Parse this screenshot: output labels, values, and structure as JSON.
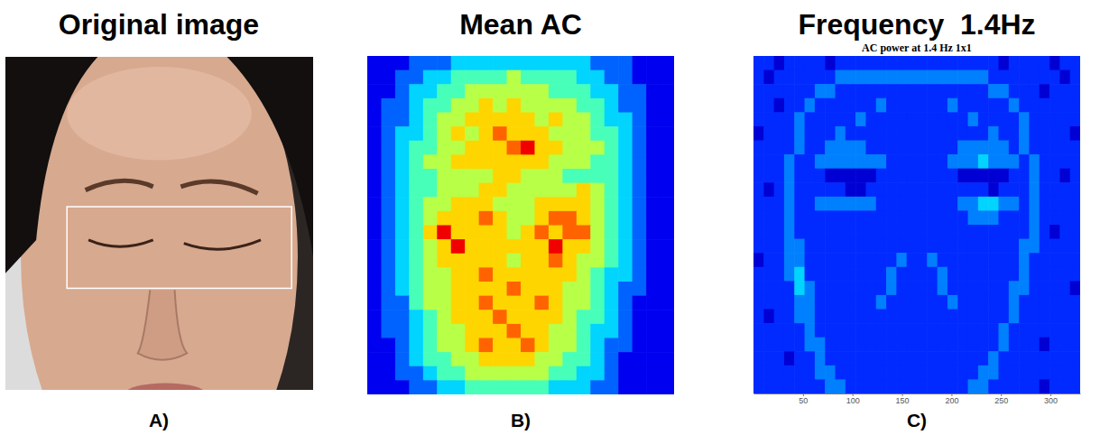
{
  "chart_data": [
    {
      "type": "image",
      "title": "Original image",
      "label": "A)"
    },
    {
      "type": "heatmap",
      "title": "Mean AC",
      "label": "B)",
      "tick_labels": false,
      "zlim": [
        0,
        9
      ],
      "cells": [
        [
          1,
          1,
          1,
          2,
          2,
          2,
          3,
          3,
          3,
          3,
          3,
          3,
          3,
          3,
          3,
          3,
          2,
          2,
          2,
          1,
          1,
          1
        ],
        [
          1,
          1,
          2,
          2,
          3,
          3,
          4,
          4,
          4,
          4,
          5,
          4,
          4,
          4,
          4,
          3,
          3,
          2,
          2,
          1,
          1,
          1
        ],
        [
          1,
          1,
          2,
          3,
          3,
          4,
          4,
          5,
          5,
          5,
          5,
          5,
          5,
          4,
          4,
          4,
          3,
          3,
          2,
          2,
          1,
          1
        ],
        [
          1,
          2,
          2,
          3,
          4,
          4,
          5,
          5,
          6,
          5,
          6,
          5,
          5,
          5,
          5,
          4,
          4,
          3,
          2,
          2,
          1,
          1
        ],
        [
          1,
          2,
          2,
          3,
          4,
          5,
          5,
          6,
          6,
          6,
          6,
          6,
          5,
          6,
          5,
          5,
          4,
          3,
          3,
          2,
          1,
          1
        ],
        [
          1,
          2,
          3,
          3,
          4,
          5,
          6,
          5,
          6,
          7,
          6,
          6,
          6,
          5,
          5,
          5,
          4,
          4,
          3,
          2,
          1,
          1
        ],
        [
          1,
          2,
          3,
          4,
          4,
          5,
          5,
          6,
          6,
          6,
          7,
          8,
          6,
          6,
          5,
          5,
          5,
          4,
          3,
          2,
          1,
          1
        ],
        [
          1,
          2,
          3,
          4,
          5,
          5,
          6,
          6,
          6,
          6,
          6,
          6,
          6,
          5,
          5,
          5,
          4,
          4,
          3,
          2,
          1,
          1
        ],
        [
          1,
          2,
          3,
          4,
          4,
          5,
          5,
          5,
          5,
          6,
          6,
          5,
          5,
          5,
          4,
          4,
          4,
          4,
          3,
          2,
          1,
          1
        ],
        [
          1,
          2,
          3,
          4,
          4,
          5,
          5,
          5,
          6,
          6,
          5,
          5,
          5,
          5,
          5,
          6,
          5,
          4,
          3,
          2,
          1,
          1
        ],
        [
          1,
          2,
          3,
          4,
          5,
          5,
          6,
          6,
          6,
          5,
          5,
          5,
          6,
          6,
          6,
          6,
          5,
          4,
          3,
          2,
          1,
          1
        ],
        [
          1,
          2,
          3,
          4,
          5,
          6,
          6,
          6,
          7,
          6,
          5,
          5,
          6,
          7,
          7,
          6,
          5,
          4,
          3,
          2,
          1,
          1
        ],
        [
          1,
          2,
          3,
          4,
          6,
          8,
          6,
          6,
          6,
          6,
          5,
          6,
          7,
          6,
          7,
          7,
          5,
          4,
          3,
          2,
          1,
          1
        ],
        [
          1,
          2,
          3,
          4,
          5,
          6,
          8,
          6,
          6,
          6,
          6,
          6,
          6,
          8,
          6,
          6,
          5,
          4,
          3,
          2,
          1,
          1
        ],
        [
          1,
          2,
          3,
          4,
          5,
          6,
          6,
          6,
          6,
          6,
          5,
          6,
          6,
          7,
          6,
          5,
          5,
          4,
          3,
          2,
          1,
          1
        ],
        [
          1,
          2,
          3,
          4,
          5,
          5,
          6,
          6,
          7,
          6,
          6,
          6,
          6,
          6,
          6,
          5,
          4,
          3,
          3,
          2,
          1,
          1
        ],
        [
          1,
          2,
          3,
          4,
          5,
          5,
          6,
          6,
          6,
          6,
          7,
          6,
          6,
          6,
          5,
          5,
          4,
          3,
          2,
          2,
          1,
          1
        ],
        [
          1,
          2,
          2,
          4,
          5,
          5,
          6,
          6,
          7,
          6,
          6,
          6,
          7,
          6,
          5,
          5,
          4,
          3,
          2,
          1,
          1,
          1
        ],
        [
          1,
          2,
          2,
          3,
          4,
          5,
          6,
          6,
          6,
          7,
          6,
          6,
          6,
          6,
          5,
          4,
          4,
          3,
          2,
          1,
          1,
          1
        ],
        [
          1,
          2,
          2,
          3,
          4,
          5,
          5,
          6,
          6,
          6,
          7,
          6,
          6,
          5,
          5,
          4,
          3,
          3,
          2,
          1,
          1,
          1
        ],
        [
          1,
          1,
          2,
          3,
          4,
          5,
          5,
          6,
          7,
          6,
          6,
          7,
          6,
          5,
          5,
          4,
          3,
          2,
          2,
          1,
          1,
          1
        ],
        [
          1,
          1,
          2,
          3,
          4,
          4,
          5,
          5,
          6,
          6,
          6,
          6,
          5,
          5,
          4,
          4,
          3,
          2,
          1,
          1,
          1,
          1
        ],
        [
          1,
          1,
          2,
          2,
          3,
          4,
          4,
          5,
          5,
          5,
          5,
          5,
          5,
          4,
          4,
          3,
          3,
          2,
          1,
          1,
          1,
          1
        ],
        [
          1,
          1,
          1,
          2,
          2,
          3,
          3,
          4,
          4,
          4,
          4,
          4,
          4,
          3,
          3,
          3,
          2,
          2,
          1,
          1,
          1,
          1
        ]
      ]
    },
    {
      "type": "heatmap",
      "title": "Frequency  1.4Hz",
      "subtitle": "AC power at 1.4 Hz 1x1",
      "label": "C)",
      "tick_labels": "x",
      "xlim": [
        0,
        330
      ],
      "xticks": [
        50,
        100,
        150,
        200,
        250,
        300
      ],
      "zlim": [
        0,
        12
      ],
      "cells": [
        [
          2,
          2,
          1,
          2,
          2,
          2,
          2,
          1,
          2,
          2,
          2,
          2,
          2,
          2,
          2,
          2,
          2,
          2,
          2,
          2,
          2,
          2,
          2,
          2,
          1,
          2,
          2,
          2,
          2,
          1,
          2,
          2
        ],
        [
          2,
          1,
          2,
          2,
          2,
          2,
          2,
          2,
          3,
          3,
          3,
          3,
          3,
          3,
          3,
          3,
          3,
          3,
          3,
          3,
          3,
          3,
          3,
          2,
          2,
          2,
          2,
          2,
          2,
          2,
          1,
          2
        ],
        [
          2,
          2,
          2,
          2,
          2,
          2,
          3,
          3,
          2,
          2,
          2,
          2,
          2,
          2,
          2,
          2,
          2,
          2,
          2,
          2,
          2,
          2,
          2,
          3,
          3,
          2,
          2,
          2,
          1,
          2,
          2,
          2
        ],
        [
          2,
          2,
          1,
          2,
          2,
          3,
          2,
          2,
          2,
          2,
          2,
          2,
          3,
          2,
          2,
          2,
          2,
          2,
          2,
          3,
          2,
          2,
          2,
          2,
          2,
          3,
          2,
          2,
          2,
          2,
          2,
          2
        ],
        [
          2,
          2,
          2,
          2,
          3,
          2,
          2,
          2,
          2,
          2,
          3,
          2,
          2,
          2,
          2,
          2,
          2,
          2,
          2,
          2,
          2,
          3,
          2,
          2,
          2,
          2,
          3,
          2,
          2,
          2,
          2,
          2
        ],
        [
          1,
          2,
          2,
          2,
          3,
          2,
          2,
          2,
          3,
          2,
          2,
          2,
          2,
          2,
          2,
          2,
          2,
          2,
          2,
          2,
          2,
          2,
          2,
          3,
          2,
          2,
          3,
          2,
          2,
          2,
          2,
          1
        ],
        [
          2,
          2,
          2,
          2,
          3,
          2,
          2,
          3,
          3,
          3,
          3,
          2,
          2,
          2,
          2,
          2,
          2,
          2,
          2,
          2,
          3,
          3,
          3,
          3,
          3,
          2,
          3,
          2,
          2,
          2,
          2,
          2
        ],
        [
          2,
          2,
          2,
          3,
          2,
          2,
          3,
          3,
          3,
          3,
          3,
          3,
          3,
          2,
          2,
          2,
          2,
          2,
          2,
          3,
          3,
          3,
          4,
          3,
          3,
          3,
          2,
          3,
          2,
          2,
          2,
          2
        ],
        [
          2,
          2,
          2,
          3,
          2,
          2,
          2,
          1,
          1,
          1,
          1,
          1,
          2,
          2,
          2,
          2,
          2,
          2,
          2,
          2,
          1,
          1,
          1,
          1,
          1,
          2,
          2,
          3,
          2,
          2,
          1,
          2
        ],
        [
          2,
          1,
          2,
          3,
          2,
          2,
          2,
          2,
          2,
          1,
          1,
          2,
          2,
          2,
          2,
          2,
          2,
          2,
          2,
          2,
          2,
          2,
          2,
          1,
          2,
          2,
          2,
          3,
          2,
          2,
          2,
          2
        ],
        [
          2,
          2,
          2,
          3,
          2,
          2,
          3,
          3,
          3,
          3,
          3,
          3,
          2,
          2,
          2,
          2,
          2,
          2,
          2,
          2,
          3,
          3,
          4,
          4,
          3,
          3,
          2,
          3,
          2,
          2,
          2,
          2
        ],
        [
          2,
          2,
          2,
          3,
          2,
          2,
          2,
          2,
          2,
          2,
          2,
          2,
          2,
          2,
          2,
          2,
          2,
          2,
          2,
          2,
          2,
          3,
          3,
          3,
          2,
          2,
          2,
          3,
          2,
          2,
          2,
          2
        ],
        [
          2,
          2,
          2,
          3,
          2,
          2,
          2,
          2,
          2,
          2,
          2,
          2,
          2,
          2,
          2,
          2,
          2,
          2,
          2,
          2,
          2,
          2,
          2,
          2,
          2,
          2,
          2,
          3,
          2,
          1,
          2,
          2
        ],
        [
          2,
          2,
          2,
          3,
          3,
          2,
          2,
          2,
          2,
          2,
          2,
          2,
          2,
          2,
          2,
          2,
          2,
          2,
          2,
          2,
          2,
          2,
          2,
          2,
          2,
          2,
          3,
          3,
          2,
          2,
          2,
          2
        ],
        [
          1,
          2,
          2,
          3,
          3,
          2,
          2,
          2,
          2,
          2,
          2,
          2,
          2,
          2,
          3,
          2,
          2,
          3,
          2,
          2,
          2,
          2,
          2,
          2,
          2,
          2,
          3,
          2,
          2,
          2,
          2,
          2
        ],
        [
          2,
          2,
          2,
          3,
          4,
          2,
          2,
          2,
          2,
          2,
          2,
          2,
          2,
          3,
          2,
          2,
          2,
          2,
          3,
          2,
          2,
          2,
          2,
          2,
          2,
          2,
          3,
          2,
          2,
          2,
          2,
          2
        ],
        [
          2,
          2,
          2,
          2,
          4,
          3,
          2,
          2,
          2,
          2,
          2,
          2,
          2,
          3,
          2,
          2,
          2,
          2,
          3,
          2,
          2,
          2,
          2,
          2,
          2,
          3,
          3,
          2,
          2,
          2,
          2,
          1
        ],
        [
          2,
          2,
          2,
          2,
          3,
          3,
          2,
          2,
          2,
          2,
          2,
          2,
          3,
          2,
          2,
          2,
          2,
          2,
          2,
          3,
          2,
          2,
          2,
          2,
          2,
          3,
          2,
          2,
          2,
          2,
          2,
          2
        ],
        [
          2,
          1,
          2,
          2,
          3,
          3,
          2,
          2,
          2,
          2,
          2,
          2,
          2,
          2,
          2,
          2,
          2,
          2,
          2,
          2,
          2,
          2,
          2,
          2,
          2,
          3,
          2,
          2,
          2,
          2,
          2,
          2
        ],
        [
          2,
          2,
          2,
          2,
          2,
          3,
          2,
          2,
          2,
          2,
          2,
          2,
          2,
          2,
          2,
          2,
          2,
          2,
          2,
          2,
          2,
          2,
          2,
          2,
          3,
          2,
          2,
          2,
          2,
          2,
          2,
          2
        ],
        [
          2,
          2,
          2,
          2,
          2,
          3,
          3,
          2,
          2,
          2,
          2,
          2,
          2,
          2,
          2,
          2,
          2,
          2,
          2,
          2,
          2,
          2,
          2,
          2,
          3,
          2,
          2,
          2,
          1,
          2,
          2,
          2
        ],
        [
          2,
          2,
          2,
          1,
          2,
          2,
          3,
          2,
          2,
          2,
          2,
          2,
          2,
          2,
          2,
          2,
          2,
          2,
          2,
          2,
          2,
          2,
          2,
          3,
          2,
          2,
          2,
          2,
          2,
          2,
          2,
          2
        ],
        [
          2,
          2,
          2,
          2,
          2,
          2,
          3,
          3,
          2,
          2,
          2,
          2,
          2,
          2,
          2,
          2,
          2,
          2,
          2,
          2,
          2,
          2,
          3,
          3,
          2,
          2,
          2,
          2,
          2,
          2,
          2,
          2
        ],
        [
          2,
          2,
          2,
          2,
          2,
          2,
          2,
          3,
          3,
          2,
          2,
          2,
          2,
          2,
          2,
          2,
          2,
          2,
          2,
          2,
          2,
          3,
          3,
          2,
          2,
          2,
          2,
          2,
          1,
          2,
          2,
          2
        ]
      ]
    }
  ]
}
